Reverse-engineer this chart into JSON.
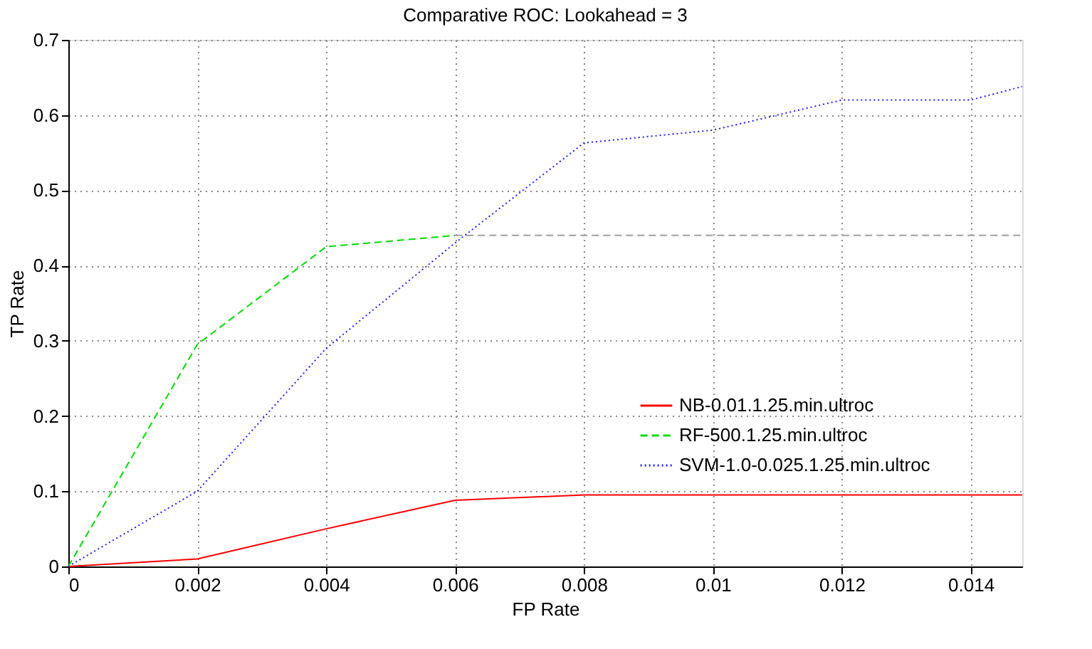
{
  "chart_data": {
    "type": "line",
    "title": "Comparative ROC: Lookahead = 3",
    "xlabel": "FP Rate",
    "ylabel": "TP Rate",
    "xlim": [
      0,
      0.0148
    ],
    "xticks": [
      0,
      0.002,
      0.004,
      0.006,
      0.008,
      0.01,
      0.012,
      0.014
    ],
    "ylim": [
      0,
      0.7
    ],
    "yticks": [
      0,
      0.1,
      0.2,
      0.3,
      0.4,
      0.5,
      0.6,
      0.7
    ],
    "grid": true,
    "legend": "bottom right",
    "marker": "none",
    "series": [
      {
        "name": "NB-0.01.1.25.min.ultroc",
        "color": "#ff0000",
        "line_style": "solid",
        "x": [
          0,
          0.002,
          0.004,
          0.006,
          0.008,
          0.0148
        ],
        "values": [
          0,
          0.01,
          0.05,
          0.088,
          0.095,
          0.095
        ]
      },
      {
        "name": "RF-500.1.25.min.ultroc",
        "color": "#00dd00",
        "line_style": "dashed",
        "x": [
          0,
          0.002,
          0.004,
          0.006
        ],
        "values": [
          0,
          0.295,
          0.425,
          0.44
        ]
      },
      {
        "name": "SVM-1.0-0.025.1.25.min.ultroc",
        "color": "#2020ff",
        "line_style": "dotted",
        "x": [
          0,
          0.002,
          0.004,
          0.006,
          0.008,
          0.01,
          0.012,
          0.014,
          0.0148
        ],
        "values": [
          0,
          0.1,
          0.29,
          0.43,
          0.563,
          0.58,
          0.62,
          0.62,
          0.638
        ]
      },
      {
        "color": "#a0a0a0",
        "line_style": "dashed",
        "x": [
          0.006,
          0.0148
        ],
        "values": [
          0.44,
          0.44
        ]
      }
    ]
  }
}
